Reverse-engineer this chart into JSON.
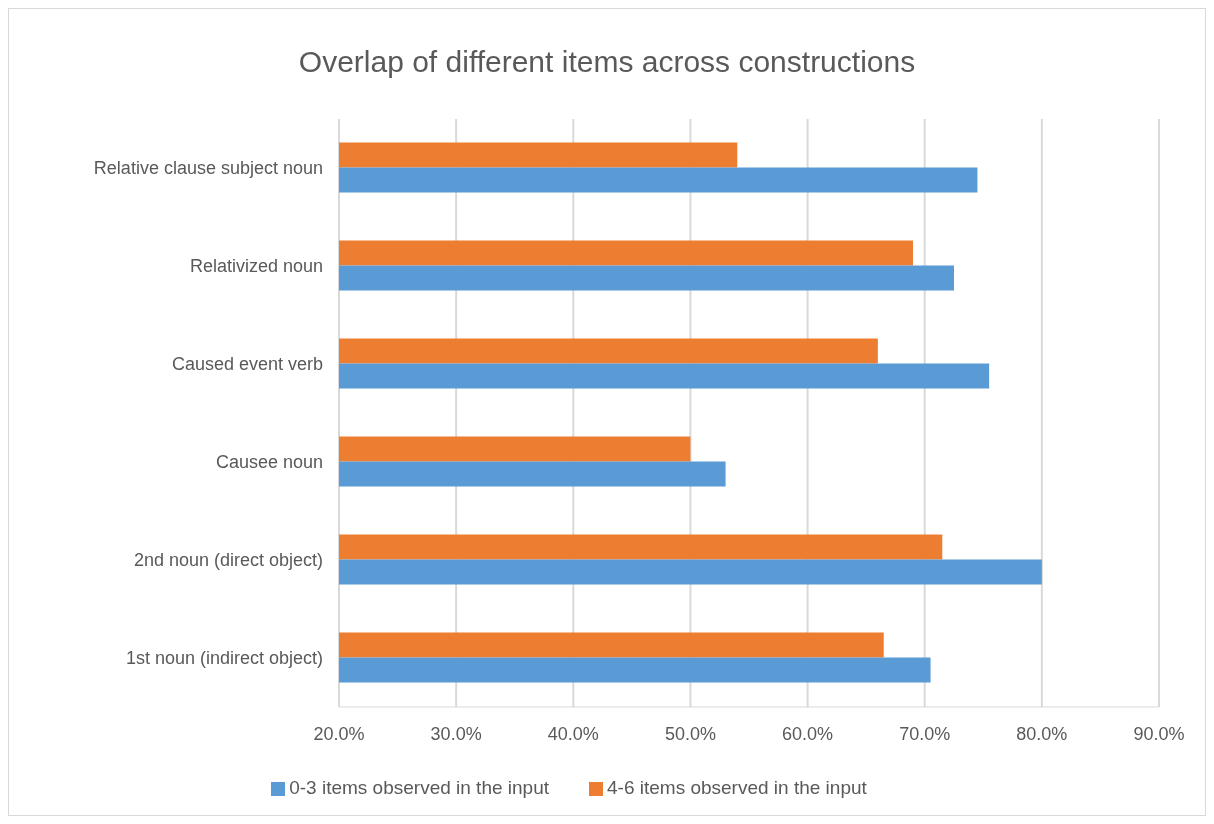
{
  "chart_data": {
    "type": "bar",
    "orientation": "horizontal",
    "title": "Overlap of different items across constructions",
    "categories": [
      "Relative clause subject noun",
      "Relativized noun",
      "Caused event verb",
      "Causee noun",
      "2nd noun (direct object)",
      "1st noun (indirect object)"
    ],
    "series": [
      {
        "name": "4-6 items observed in the input",
        "color": "#ed7d31",
        "values": [
          54,
          69,
          66,
          50,
          71.5,
          66.5
        ]
      },
      {
        "name": "0-3 items observed in the input",
        "color": "#5b9bd5",
        "values": [
          74.5,
          72.5,
          75.5,
          53,
          80,
          70.5
        ]
      }
    ],
    "xlim": [
      20,
      90
    ],
    "xticks": [
      {
        "value": 20,
        "label": "20.0%"
      },
      {
        "value": 30,
        "label": "30.0%"
      },
      {
        "value": 40,
        "label": "40.0%"
      },
      {
        "value": 50,
        "label": "50.0%"
      },
      {
        "value": 60,
        "label": "60.0%"
      },
      {
        "value": 70,
        "label": "70.0%"
      },
      {
        "value": 80,
        "label": "80.0%"
      },
      {
        "value": 90,
        "label": "90.0%"
      }
    ],
    "grid": "x",
    "legend": "bottom"
  }
}
